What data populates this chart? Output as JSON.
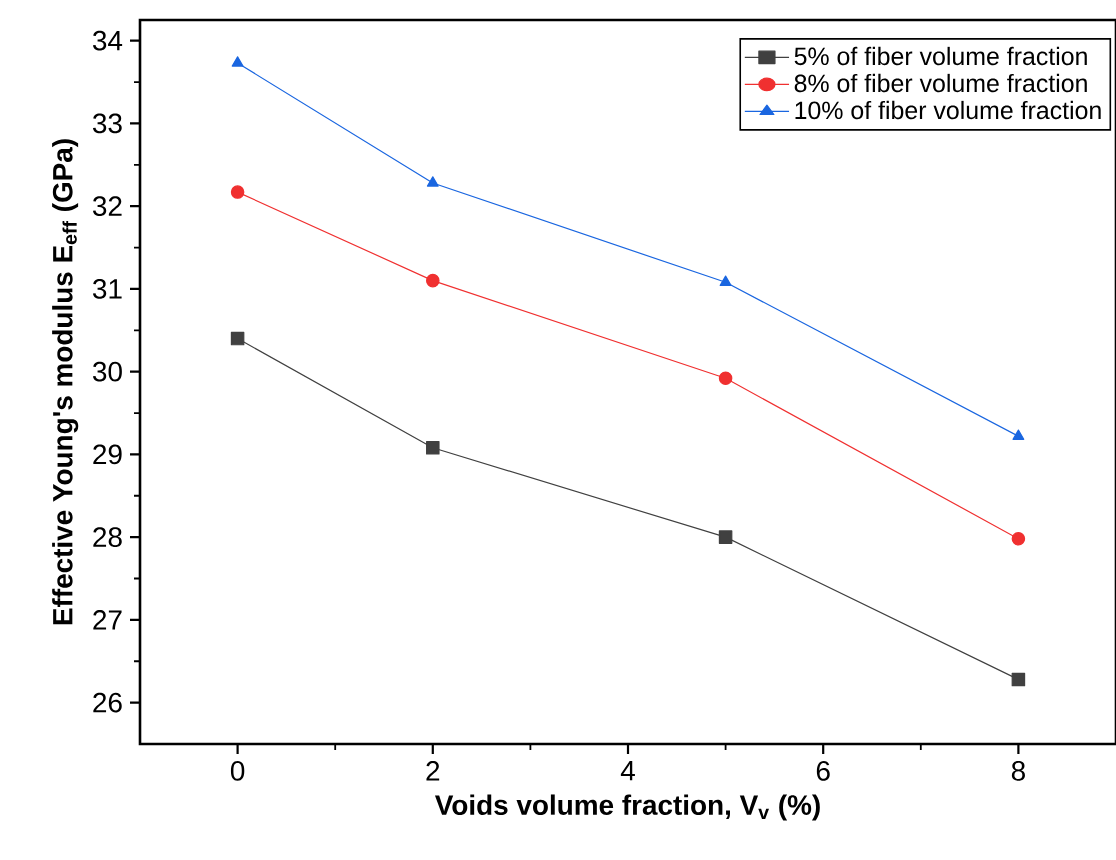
{
  "chart_data": {
    "type": "line",
    "xlabel": "Voids volume fraction, V$_{v}$ (%)",
    "ylabel": "Effective Young's modulus E$_{eff}$ (GPa)",
    "x": [
      0,
      2,
      5,
      8
    ],
    "series": [
      {
        "name": "5% of fiber volume fraction",
        "color": "#404040",
        "marker": "square",
        "values": [
          30.4,
          29.08,
          28.0,
          26.28
        ]
      },
      {
        "name": "8% of fiber volume fraction",
        "color": "#f03030",
        "marker": "circle",
        "values": [
          32.17,
          31.1,
          29.92,
          27.98
        ]
      },
      {
        "name": "10% of fiber volume fraction",
        "color": "#1a66e0",
        "marker": "triangle",
        "values": [
          33.73,
          32.28,
          31.08,
          29.22
        ]
      }
    ],
    "xlim": [
      -1,
      9
    ],
    "ylim": [
      25.5,
      34.25
    ],
    "xticks": [
      0,
      2,
      4,
      6,
      8
    ],
    "yticks": [
      26,
      27,
      28,
      29,
      30,
      31,
      32,
      33,
      34
    ],
    "legend": "top right",
    "grid": false,
    "line_style": "solid"
  }
}
